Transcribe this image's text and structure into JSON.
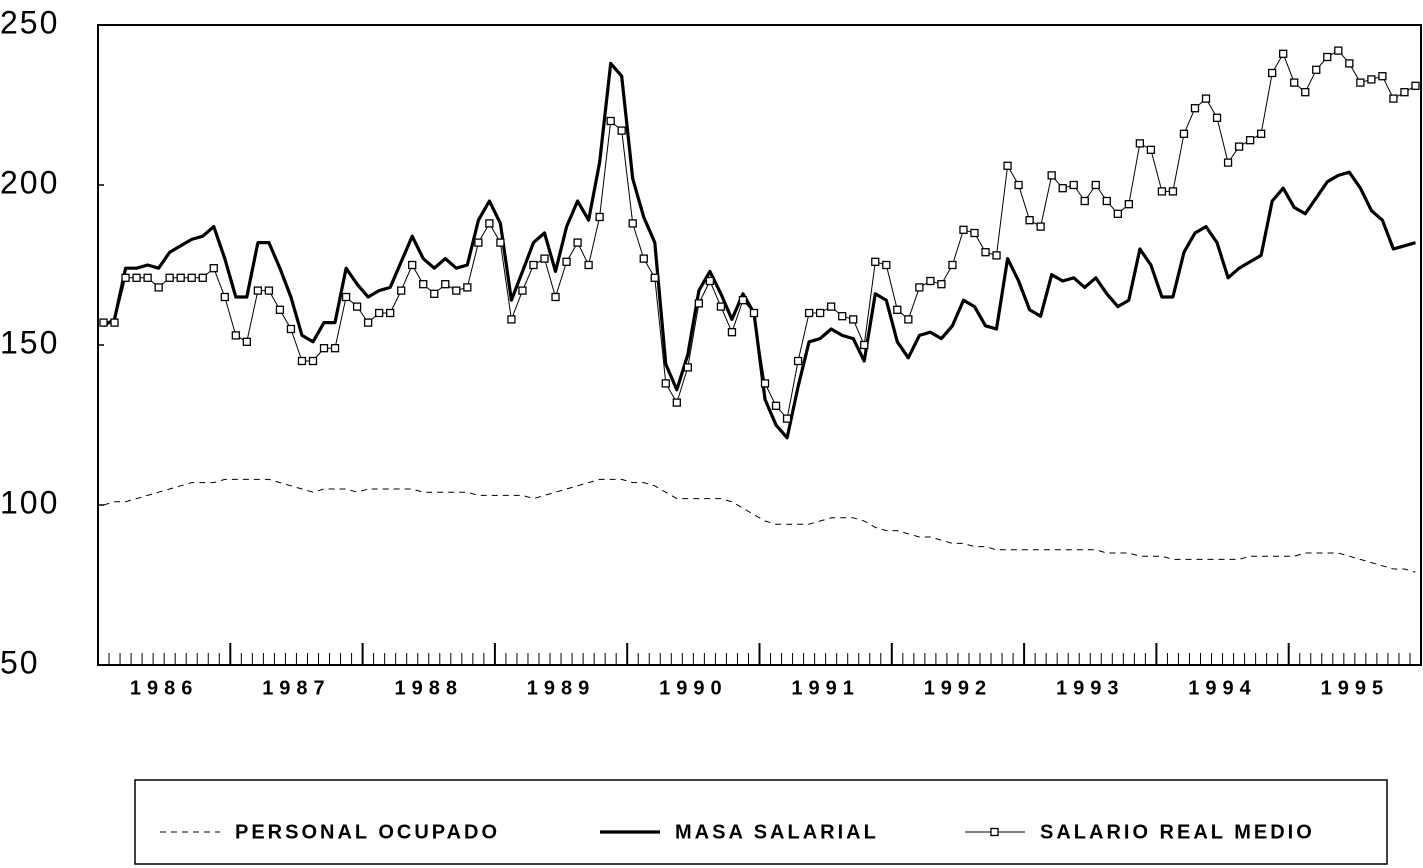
{
  "chart_data": {
    "type": "line",
    "categories": [
      null,
      null,
      null,
      null,
      null,
      null,
      "1986",
      null,
      null,
      null,
      null,
      null,
      null,
      null,
      null,
      null,
      null,
      null,
      "1987",
      null,
      null,
      null,
      null,
      null,
      null,
      null,
      null,
      null,
      null,
      null,
      "1988",
      null,
      null,
      null,
      null,
      null,
      null,
      null,
      null,
      null,
      null,
      null,
      "1989",
      null,
      null,
      null,
      null,
      null,
      null,
      null,
      null,
      null,
      null,
      null,
      "1990",
      null,
      null,
      null,
      null,
      null,
      null,
      null,
      null,
      null,
      null,
      null,
      "1991",
      null,
      null,
      null,
      null,
      null,
      null,
      null,
      null,
      null,
      null,
      null,
      "1992",
      null,
      null,
      null,
      null,
      null,
      null,
      null,
      null,
      null,
      null,
      null,
      "1993",
      null,
      null,
      null,
      null,
      null,
      null,
      null,
      null,
      null,
      null,
      null,
      "1994",
      null,
      null,
      null,
      null,
      null,
      null,
      null,
      null,
      null,
      null,
      null,
      "1995",
      null,
      null,
      null,
      null,
      null
    ],
    "ylim": [
      50,
      250
    ],
    "yticks": [
      50,
      100,
      150,
      200,
      250
    ],
    "grid": false,
    "series": [
      {
        "name": "PERSONAL OCUPADO",
        "color": "#000000",
        "style": "dashed",
        "values": [
          100,
          101,
          101,
          102,
          103,
          104,
          105,
          106,
          107,
          107,
          107,
          108,
          108,
          108,
          108,
          108,
          107,
          106,
          105,
          104,
          105,
          105,
          105,
          104,
          105,
          105,
          105,
          105,
          105,
          104,
          104,
          104,
          104,
          104,
          103,
          103,
          103,
          103,
          103,
          102,
          103,
          104,
          105,
          106,
          107,
          108,
          108,
          108,
          107,
          107,
          106,
          104,
          102,
          102,
          102,
          102,
          102,
          101,
          99,
          97,
          95,
          94,
          94,
          94,
          94,
          95,
          96,
          96,
          96,
          95,
          93,
          92,
          92,
          91,
          90,
          90,
          89,
          88,
          88,
          87,
          87,
          86,
          86,
          86,
          86,
          86,
          86,
          86,
          86,
          86,
          86,
          85,
          85,
          85,
          84,
          84,
          84,
          83,
          83,
          83,
          83,
          83,
          83,
          83,
          84,
          84,
          84,
          84,
          84,
          85,
          85,
          85,
          85,
          84,
          83,
          82,
          81,
          80,
          80,
          79
        ]
      },
      {
        "name": "MASA SALARIAL",
        "color": "#000000",
        "style": "thick",
        "values": [
          156,
          158,
          174,
          174,
          175,
          174,
          179,
          181,
          183,
          184,
          187,
          177,
          165,
          165,
          182,
          182,
          174,
          165,
          153,
          151,
          157,
          157,
          174,
          169,
          165,
          167,
          168,
          176,
          184,
          177,
          174,
          177,
          174,
          175,
          189,
          195,
          188,
          164,
          173,
          182,
          185,
          173,
          187,
          195,
          189,
          207,
          238,
          234,
          202,
          190,
          182,
          144,
          136,
          147,
          167,
          173,
          166,
          158,
          166,
          160,
          133,
          125,
          121,
          137,
          151,
          152,
          155,
          153,
          152,
          145,
          166,
          164,
          151,
          146,
          153,
          154,
          152,
          156,
          164,
          162,
          156,
          155,
          177,
          170,
          161,
          159,
          172,
          170,
          171,
          168,
          171,
          166,
          162,
          164,
          180,
          175,
          165,
          165,
          179,
          185,
          187,
          182,
          171,
          174,
          176,
          178,
          195,
          199,
          193,
          191,
          196,
          201,
          203,
          204,
          199,
          192,
          189,
          180,
          181,
          182
        ]
      },
      {
        "name": "SALARIO REAL MEDIO",
        "color": "#000000",
        "style": "marker",
        "values": [
          157,
          157,
          171,
          171,
          171,
          168,
          171,
          171,
          171,
          171,
          174,
          165,
          153,
          151,
          167,
          167,
          161,
          155,
          145,
          145,
          149,
          149,
          165,
          162,
          157,
          160,
          160,
          167,
          175,
          169,
          166,
          169,
          167,
          168,
          182,
          188,
          182,
          158,
          167,
          175,
          177,
          165,
          176,
          182,
          175,
          190,
          220,
          217,
          188,
          177,
          171,
          138,
          132,
          143,
          163,
          170,
          162,
          154,
          164,
          160,
          138,
          131,
          127,
          145,
          160,
          160,
          162,
          159,
          158,
          150,
          176,
          175,
          161,
          158,
          168,
          170,
          169,
          175,
          186,
          185,
          179,
          178,
          206,
          200,
          189,
          187,
          203,
          199,
          200,
          195,
          200,
          195,
          191,
          194,
          213,
          211,
          198,
          198,
          216,
          224,
          227,
          221,
          207,
          212,
          214,
          216,
          235,
          241,
          232,
          229,
          236,
          240,
          242,
          238,
          232,
          233,
          234,
          227,
          229,
          231
        ]
      }
    ]
  }
}
